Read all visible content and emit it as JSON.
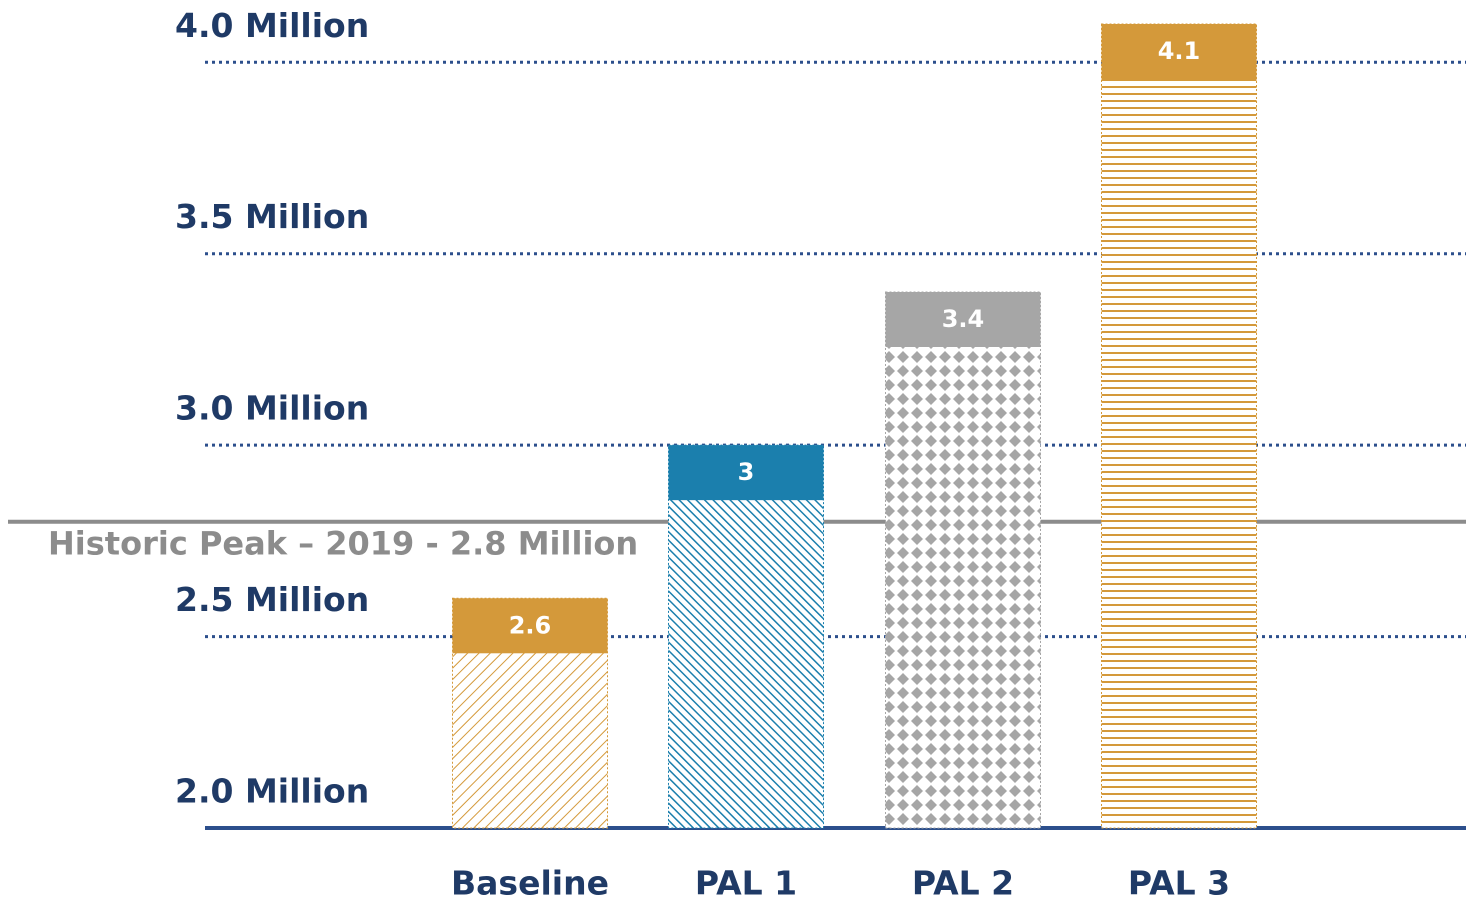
{
  "chart_data": {
    "type": "bar",
    "categories": [
      "Baseline",
      "PAL 1",
      "PAL 2",
      "PAL 3"
    ],
    "values": [
      2.6,
      3.0,
      3.4,
      4.1
    ],
    "colors": [
      "#d4993a",
      "#1b7fad",
      "#a6a6a6",
      "#d4993a"
    ],
    "ylim": [
      2.0,
      4.1
    ],
    "yticks": [
      {
        "value": 2.0,
        "label": "2.0 Million"
      },
      {
        "value": 2.5,
        "label": "2.5 Million"
      },
      {
        "value": 3.0,
        "label": "3.0 Million"
      },
      {
        "value": 3.5,
        "label": "3.5 Million"
      },
      {
        "value": 4.0,
        "label": "4.0 Million"
      }
    ],
    "grid": true,
    "reference_line": {
      "value": 2.8,
      "label": "Historic Peak – 2019 - 2.8 Million",
      "color": "#8c8c8c"
    }
  }
}
